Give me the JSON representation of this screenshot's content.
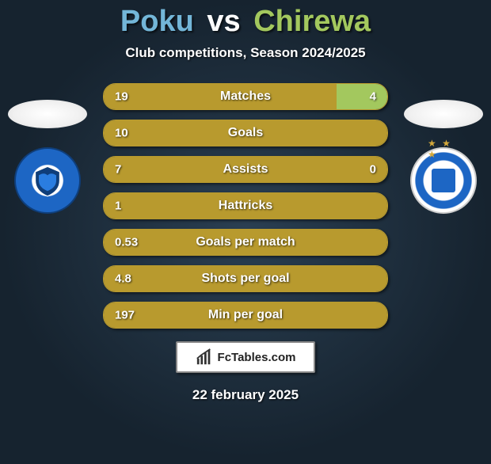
{
  "title": {
    "player1": "Poku",
    "vs": "vs",
    "player2": "Chirewa",
    "player1_color": "#73b6d8",
    "player2_color": "#a3c85e"
  },
  "subtitle": "Club competitions, Season 2024/2025",
  "rows": [
    {
      "label": "Matches",
      "left": "19",
      "right": "4",
      "left_w": 82,
      "right_w": 18
    },
    {
      "label": "Goals",
      "left": "10",
      "right": "",
      "left_w": 100,
      "right_w": 0
    },
    {
      "label": "Assists",
      "left": "7",
      "right": "0",
      "left_w": 100,
      "right_w": 0
    },
    {
      "label": "Hattricks",
      "left": "1",
      "right": "",
      "left_w": 100,
      "right_w": 0
    },
    {
      "label": "Goals per match",
      "left": "0.53",
      "right": "",
      "left_w": 100,
      "right_w": 0
    },
    {
      "label": "Shots per goal",
      "left": "4.8",
      "right": "",
      "left_w": 100,
      "right_w": 0
    },
    {
      "label": "Min per goal",
      "left": "197",
      "right": "",
      "left_w": 100,
      "right_w": 0
    }
  ],
  "row_style": {
    "border_color": "#b89a2e",
    "left_fill": "#b89a2e",
    "right_fill": "#a3c85e",
    "empty_fill": "#2a3f52"
  },
  "brand": {
    "text": "FcTables.com"
  },
  "date": "22 february 2025"
}
